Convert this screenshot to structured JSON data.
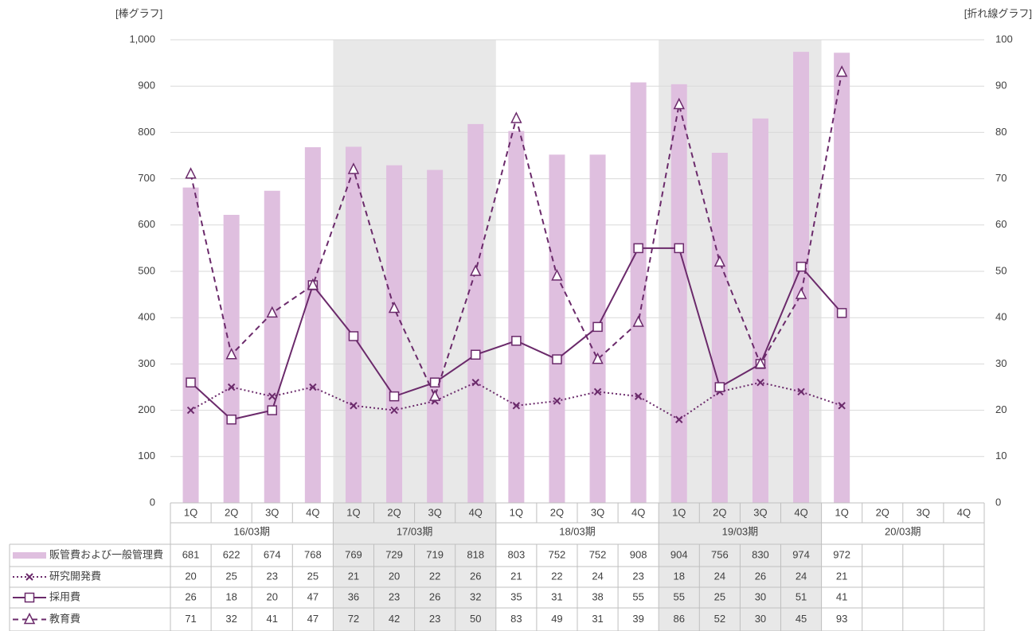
{
  "chart_data": {
    "type": "bar_line_table",
    "y_label": "[棒グラフ]",
    "y2_label": "[折れ線グラフ]",
    "categories": [
      "1Q",
      "2Q",
      "3Q",
      "4Q",
      "1Q",
      "2Q",
      "3Q",
      "4Q",
      "1Q",
      "2Q",
      "3Q",
      "4Q",
      "1Q",
      "2Q",
      "3Q",
      "4Q",
      "1Q",
      "2Q",
      "3Q",
      "4Q"
    ],
    "groups": [
      "16/03期",
      "17/03期",
      "18/03期",
      "19/03期",
      "20/03期"
    ],
    "ylim": [
      0,
      1000
    ],
    "yticks": [
      0,
      100,
      200,
      300,
      400,
      500,
      600,
      700,
      800,
      900,
      {
        "value": 1000,
        "label": "1,000"
      }
    ],
    "y2lim": [
      0,
      100
    ],
    "y2ticks": [
      0,
      10,
      20,
      30,
      40,
      50,
      60,
      70,
      80,
      90,
      100
    ],
    "grid": true,
    "series": [
      {
        "name": "販管費および一般管理費",
        "type": "bar",
        "color": "#dfbfdf",
        "axis": "y",
        "values": [
          681,
          622,
          674,
          768,
          769,
          729,
          719,
          818,
          803,
          752,
          752,
          908,
          904,
          756,
          830,
          974,
          972,
          null,
          null,
          null
        ]
      },
      {
        "name": "研究開発費",
        "type": "line",
        "color": "#6b2a6b",
        "axis": "y2",
        "dash": "dotted",
        "marker": "x",
        "values": [
          20,
          25,
          23,
          25,
          21,
          20,
          22,
          26,
          21,
          22,
          24,
          23,
          18,
          24,
          26,
          24,
          21,
          null,
          null,
          null
        ]
      },
      {
        "name": "採用費",
        "type": "line",
        "color": "#6b2a6b",
        "axis": "y2",
        "dash": "solid",
        "marker": "square",
        "values": [
          26,
          18,
          20,
          47,
          36,
          23,
          26,
          32,
          35,
          31,
          38,
          55,
          55,
          25,
          30,
          51,
          41,
          null,
          null,
          null
        ]
      },
      {
        "name": "教育費",
        "type": "line",
        "color": "#6b2a6b",
        "axis": "y2",
        "dash": "dashed",
        "marker": "triangle",
        "values": [
          71,
          32,
          41,
          47,
          72,
          42,
          23,
          50,
          83,
          49,
          31,
          39,
          86,
          52,
          30,
          45,
          93,
          null,
          null,
          null
        ]
      }
    ]
  }
}
